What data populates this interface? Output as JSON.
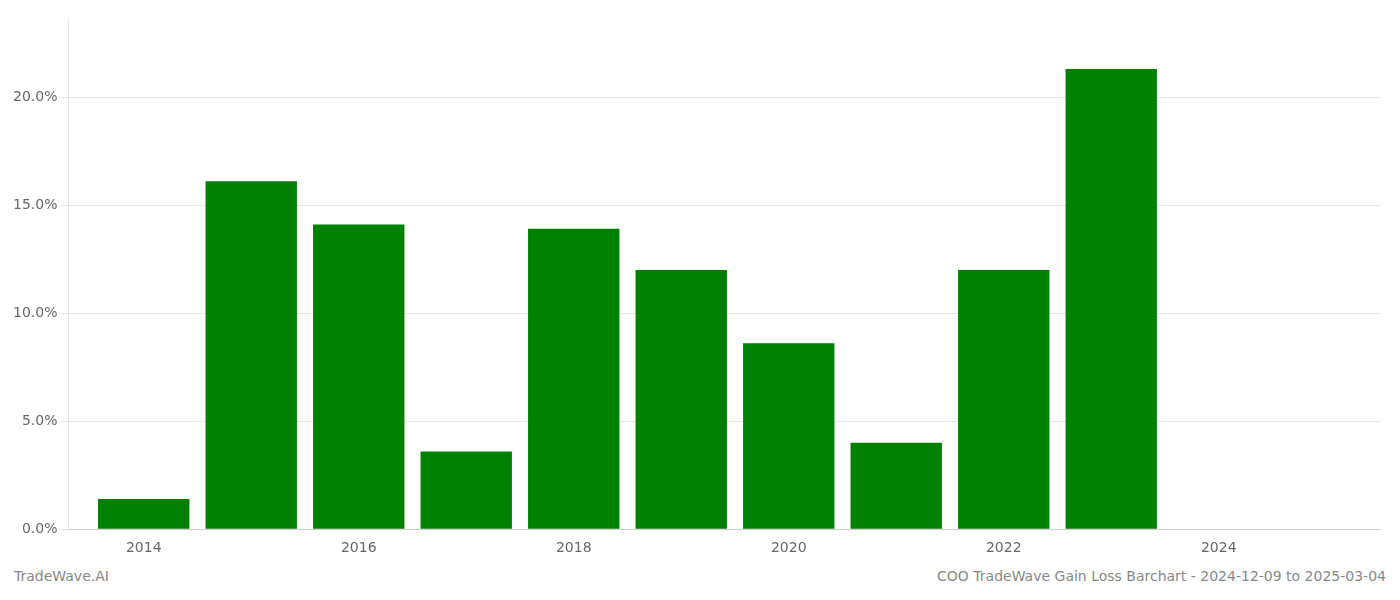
{
  "chart_data": {
    "type": "bar",
    "x": [
      2014,
      2015,
      2016,
      2017,
      2018,
      2019,
      2020,
      2021,
      2022,
      2023
    ],
    "values": [
      0.014,
      0.161,
      0.141,
      0.036,
      0.139,
      0.12,
      0.086,
      0.04,
      0.12,
      0.213
    ],
    "color": "#008000",
    "xlim": [
      2013.3,
      2025.5
    ],
    "xticks": [
      2014,
      2016,
      2018,
      2020,
      2022,
      2024
    ],
    "ylim": [
      0,
      0.235
    ],
    "yticks": [
      {
        "value": 0.0,
        "label": "0.0%"
      },
      {
        "value": 0.05,
        "label": "5.0%"
      },
      {
        "value": 0.1,
        "label": "10.0%"
      },
      {
        "value": 0.15,
        "label": "15.0%"
      },
      {
        "value": 0.2,
        "label": "20.0%"
      }
    ],
    "grid": true,
    "annotations": [
      "TradeWave.AI",
      "COO TradeWave Gain Loss Barchart - 2024-12-09 to 2025-03-04"
    ]
  }
}
